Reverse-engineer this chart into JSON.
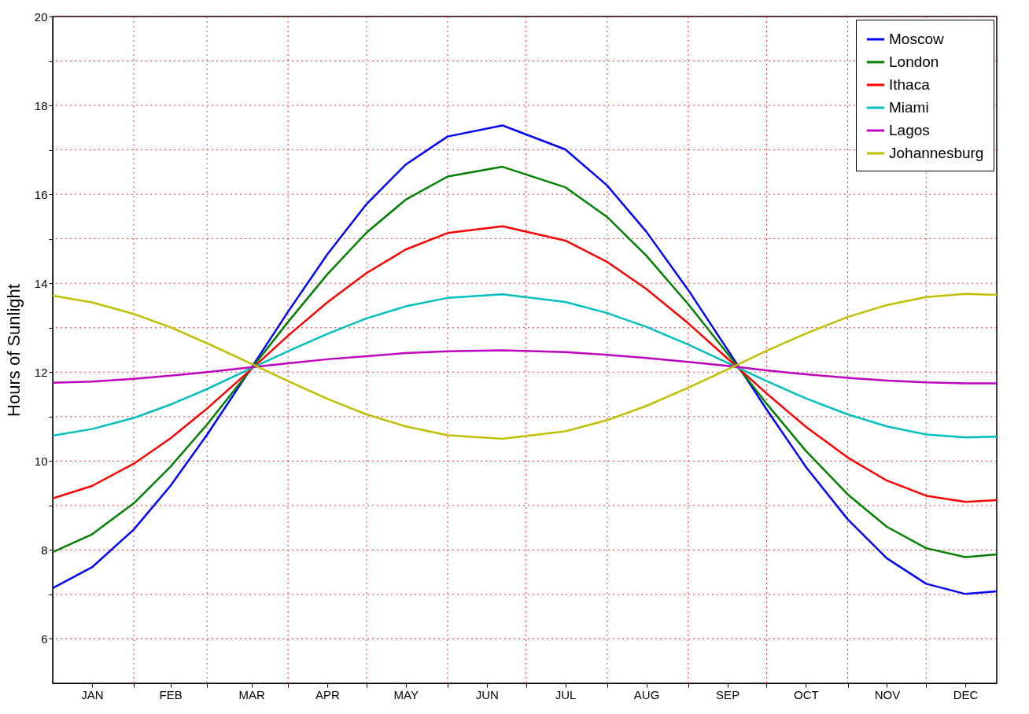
{
  "chart_data": {
    "type": "line",
    "ylabel": "Hours of Sunlight",
    "x": [
      "--01-01",
      "--01-16",
      "--02-01",
      "--02-15",
      "--03-01",
      "--03-18",
      "--04-01",
      "--04-16",
      "--05-01",
      "--05-16",
      "--06-01",
      "--06-22",
      "--07-16",
      "--08-01",
      "--08-16",
      "--09-01",
      "--09-16",
      "--10-01",
      "--10-16",
      "--11-01",
      "--11-16",
      "--12-01",
      "--12-16",
      "--12-28"
    ],
    "xlim": [
      "--01-01",
      "--12-28"
    ],
    "xticks": [
      {
        "value": "--01-16",
        "label": "JAN"
      },
      {
        "value": "--02-01",
        "label": null
      },
      {
        "value": "--02-15",
        "label": "FEB"
      },
      {
        "value": "--03-01",
        "label": null
      },
      {
        "value": "--03-18",
        "label": "MAR"
      },
      {
        "value": "--04-01",
        "label": null
      },
      {
        "value": "--04-16",
        "label": "APR"
      },
      {
        "value": "--05-01",
        "label": null
      },
      {
        "value": "--05-16",
        "label": "MAY"
      },
      {
        "value": "--06-01",
        "label": null
      },
      {
        "value": "--06-16",
        "label": "JUN"
      },
      {
        "value": "--07-01",
        "label": null
      },
      {
        "value": "--07-16",
        "label": "JUL"
      },
      {
        "value": "--08-01",
        "label": null
      },
      {
        "value": "--08-16",
        "label": "AUG"
      },
      {
        "value": "--09-01",
        "label": null
      },
      {
        "value": "--09-16",
        "label": "SEP"
      },
      {
        "value": "--10-01",
        "label": null
      },
      {
        "value": "--10-16",
        "label": "OCT"
      },
      {
        "value": "--11-01",
        "label": null
      },
      {
        "value": "--11-16",
        "label": "NOV"
      },
      {
        "value": "--12-01",
        "label": null
      },
      {
        "value": "--12-16",
        "label": "DEC"
      }
    ],
    "ylim": [
      5,
      20
    ],
    "yticks": [
      6,
      {
        "value": 7,
        "label": null
      },
      8,
      {
        "value": 9,
        "label": null
      },
      10,
      {
        "value": 11,
        "label": null
      },
      12,
      {
        "value": 13,
        "label": null
      },
      14,
      {
        "value": 15,
        "label": null
      },
      16,
      {
        "value": 17,
        "label": null
      },
      18,
      {
        "value": 19,
        "label": null
      },
      20
    ],
    "grid": true,
    "legend": "top right",
    "series": [
      {
        "name": "Moscow",
        "color": "#0000ff",
        "values": [
          7.14,
          7.61,
          8.46,
          9.44,
          10.59,
          12.1,
          13.36,
          14.65,
          15.78,
          16.67,
          17.3,
          17.55,
          17.01,
          16.2,
          15.16,
          13.85,
          12.51,
          11.16,
          9.87,
          8.69,
          7.81,
          7.24,
          7.01,
          7.07
        ]
      },
      {
        "name": "London",
        "color": "#008000",
        "values": [
          7.95,
          8.35,
          9.05,
          9.87,
          10.82,
          12.08,
          13.13,
          14.2,
          15.14,
          15.88,
          16.4,
          16.62,
          16.16,
          15.49,
          14.62,
          13.53,
          12.42,
          11.29,
          10.23,
          9.25,
          8.52,
          8.04,
          7.84,
          7.9
        ]
      },
      {
        "name": "Ithaca",
        "color": "#ff0000",
        "values": [
          9.16,
          9.44,
          9.94,
          10.51,
          11.18,
          12.07,
          12.82,
          13.57,
          14.23,
          14.76,
          15.13,
          15.28,
          14.96,
          14.48,
          13.87,
          13.1,
          12.31,
          11.52,
          10.77,
          10.08,
          9.56,
          9.22,
          9.08,
          9.12
        ]
      },
      {
        "name": "Miami",
        "color": "#00bfbf",
        "values": [
          10.57,
          10.72,
          10.97,
          11.27,
          11.62,
          12.09,
          12.47,
          12.86,
          13.21,
          13.48,
          13.67,
          13.75,
          13.58,
          13.33,
          13.02,
          12.62,
          12.21,
          11.8,
          11.41,
          11.05,
          10.78,
          10.6,
          10.53,
          10.55
        ]
      },
      {
        "name": "Lagos",
        "color": "#bf00bf",
        "values": [
          11.76,
          11.79,
          11.85,
          11.92,
          12.0,
          12.11,
          12.2,
          12.29,
          12.36,
          12.43,
          12.47,
          12.49,
          12.45,
          12.39,
          12.32,
          12.23,
          12.14,
          12.04,
          11.95,
          11.87,
          11.81,
          11.77,
          11.75,
          11.75
        ]
      },
      {
        "name": "Johannesburg",
        "color": "#bfbf00",
        "values": [
          13.72,
          13.57,
          13.31,
          13.01,
          12.65,
          12.19,
          11.8,
          11.4,
          11.05,
          10.78,
          10.58,
          10.5,
          10.67,
          10.92,
          11.24,
          11.65,
          12.06,
          12.48,
          12.87,
          13.24,
          13.51,
          13.69,
          13.76,
          13.74
        ]
      }
    ]
  }
}
